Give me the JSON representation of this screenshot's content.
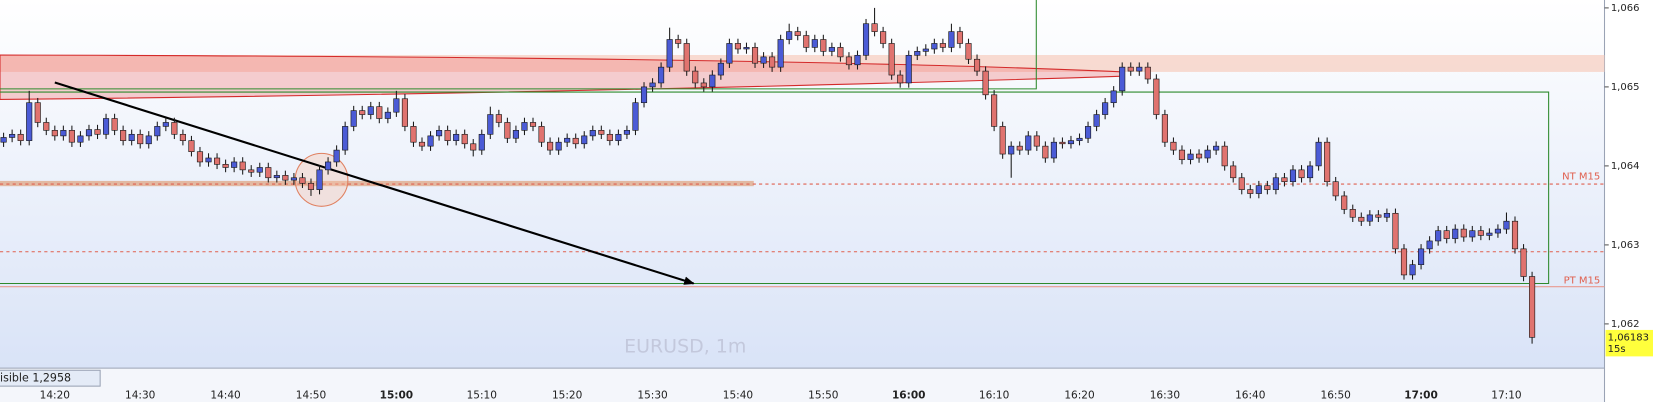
{
  "chart_data": {
    "type": "candlestick",
    "watermark": "EURUSD, 1m",
    "status_text": "isible 1,2958",
    "level_labels": [
      "NT M15",
      "PT M15"
    ],
    "last_price": {
      "value": 1.06183,
      "label": "1,06183"
    },
    "countdown": "15s",
    "up_color": "#4b5bd6",
    "down_color": "#e0736f",
    "ylim": [
      1.06144,
      1.0661
    ],
    "yticks": [
      {
        "value": 1.062,
        "label": "1,062"
      },
      {
        "value": 1.063,
        "label": "1,063"
      },
      {
        "value": 1.064,
        "label": "1,064"
      },
      {
        "value": 1.065,
        "label": "1,065"
      },
      {
        "value": 1.066,
        "label": "1,066"
      }
    ],
    "categories": [
      null,
      null,
      null,
      null,
      null,
      null,
      "14:20",
      null,
      null,
      null,
      null,
      null,
      null,
      null,
      null,
      null,
      "14:30",
      null,
      null,
      null,
      null,
      null,
      null,
      null,
      null,
      null,
      "14:40",
      null,
      null,
      null,
      null,
      null,
      null,
      null,
      null,
      null,
      "14:50",
      null,
      null,
      null,
      null,
      null,
      null,
      null,
      null,
      null,
      "15:00",
      null,
      null,
      null,
      null,
      null,
      null,
      null,
      null,
      null,
      "15:10",
      null,
      null,
      null,
      null,
      null,
      null,
      null,
      null,
      null,
      "15:20",
      null,
      null,
      null,
      null,
      null,
      null,
      null,
      null,
      null,
      "15:30",
      null,
      null,
      null,
      null,
      null,
      null,
      null,
      null,
      null,
      "15:40",
      null,
      null,
      null,
      null,
      null,
      null,
      null,
      null,
      null,
      "15:50",
      null,
      null,
      null,
      null,
      null,
      null,
      null,
      null,
      null,
      "16:00",
      null,
      null,
      null,
      null,
      null,
      null,
      null,
      null,
      null,
      "16:10",
      null,
      null,
      null,
      null,
      null,
      null,
      null,
      null,
      null,
      "16:20",
      null,
      null,
      null,
      null,
      null,
      null,
      null,
      null,
      null,
      "16:30",
      null,
      null,
      null,
      null,
      null,
      null,
      null,
      null,
      null,
      "16:40",
      null,
      null,
      null,
      null,
      null,
      null,
      null,
      null,
      null,
      "16:50",
      null,
      null,
      null,
      null,
      null,
      null,
      null,
      null,
      null,
      "17:00",
      null,
      null,
      null,
      null,
      null,
      null,
      null,
      null,
      null,
      "17:10",
      null,
      null,
      null
    ],
    "open": [
      1.0643,
      1.06436,
      1.0644,
      1.06432,
      1.0648,
      1.06455,
      1.06445,
      1.06438,
      1.06445,
      1.0643,
      1.06438,
      1.06446,
      1.0644,
      1.0646,
      1.06445,
      1.06432,
      1.0644,
      1.06428,
      1.06438,
      1.0645,
      1.06455,
      1.0644,
      1.06432,
      1.06418,
      1.06405,
      1.0641,
      1.06402,
      1.06398,
      1.06405,
      1.06395,
      1.06392,
      1.06398,
      1.06385,
      1.06388,
      1.06382,
      1.06385,
      1.06378,
      1.0637,
      1.06395,
      1.06405,
      1.0642,
      1.0645,
      1.0647,
      1.06465,
      1.06475,
      1.0646,
      1.06468,
      1.06485,
      1.0645,
      1.0643,
      1.06425,
      1.06438,
      1.06445,
      1.06432,
      1.0644,
      1.06428,
      1.0642,
      1.0644,
      1.06465,
      1.06455,
      1.06435,
      1.06445,
      1.06455,
      1.0645,
      1.0643,
      1.0642,
      1.0643,
      1.06435,
      1.06428,
      1.06438,
      1.06445,
      1.0644,
      1.06432,
      1.0644,
      1.06445,
      1.0648,
      1.065,
      1.06505,
      1.06525,
      1.0656,
      1.06555,
      1.0652,
      1.06505,
      1.065,
      1.06515,
      1.0653,
      1.06555,
      1.06548,
      1.0655,
      1.0653,
      1.06538,
      1.06525,
      1.0656,
      1.0657,
      1.06565,
      1.0655,
      1.0656,
      1.06545,
      1.0655,
      1.06538,
      1.06528,
      1.0654,
      1.0658,
      1.0657,
      1.06555,
      1.06515,
      1.06505,
      1.0654,
      1.06545,
      1.06548,
      1.06555,
      1.0655,
      1.0657,
      1.06555,
      1.06535,
      1.0652,
      1.0649,
      1.0645,
      1.06415,
      1.06425,
      1.0642,
      1.06438,
      1.06425,
      1.0641,
      1.0643,
      1.06428,
      1.06432,
      1.06435,
      1.0645,
      1.06465,
      1.0648,
      1.06495,
      1.06525,
      1.0652,
      1.06525,
      1.0651,
      1.06465,
      1.0643,
      1.0642,
      1.06408,
      1.06415,
      1.0641,
      1.0642,
      1.06425,
      1.064,
      1.06385,
      1.0637,
      1.06365,
      1.06375,
      1.0637,
      1.06385,
      1.0638,
      1.06395,
      1.06385,
      1.064,
      1.0643,
      1.0638,
      1.06362,
      1.06345,
      1.06335,
      1.0633,
      1.06338,
      1.06335,
      1.0634,
      1.06295,
      1.06262,
      1.06275,
      1.06295,
      1.06305,
      1.06318,
      1.06308,
      1.0632,
      1.0631,
      1.06318,
      1.06312,
      1.06315,
      1.0632,
      1.0633,
      1.06295,
      1.0626
    ],
    "high": [
      1.06442,
      1.06446,
      1.06446,
      1.06495,
      1.06486,
      1.06461,
      1.06451,
      1.06451,
      1.06451,
      1.06444,
      1.06452,
      1.06452,
      1.06466,
      1.06466,
      1.06451,
      1.06446,
      1.06446,
      1.06444,
      1.06456,
      1.06461,
      1.06461,
      1.06446,
      1.06438,
      1.06424,
      1.06416,
      1.06416,
      1.06408,
      1.06411,
      1.06411,
      1.06401,
      1.06404,
      1.06404,
      1.06394,
      1.06394,
      1.06391,
      1.06391,
      1.06384,
      1.06401,
      1.06411,
      1.06426,
      1.06456,
      1.06476,
      1.06476,
      1.06481,
      1.06481,
      1.06474,
      1.06495,
      1.06491,
      1.06456,
      1.06436,
      1.06444,
      1.06451,
      1.06451,
      1.06446,
      1.06446,
      1.06434,
      1.06446,
      1.06475,
      1.06471,
      1.06461,
      1.06451,
      1.06461,
      1.06461,
      1.06456,
      1.06436,
      1.06436,
      1.06441,
      1.06441,
      1.06444,
      1.06451,
      1.06451,
      1.06446,
      1.06446,
      1.06451,
      1.06486,
      1.06506,
      1.06511,
      1.06531,
      1.06575,
      1.06566,
      1.06561,
      1.06526,
      1.06511,
      1.06521,
      1.06536,
      1.06561,
      1.06561,
      1.06556,
      1.06556,
      1.06544,
      1.06544,
      1.06566,
      1.0658,
      1.06576,
      1.06571,
      1.06566,
      1.06566,
      1.06556,
      1.06556,
      1.06544,
      1.06546,
      1.06586,
      1.066,
      1.06576,
      1.06561,
      1.06521,
      1.06546,
      1.06551,
      1.06554,
      1.06561,
      1.06561,
      1.0658,
      1.06576,
      1.06561,
      1.06541,
      1.06526,
      1.06496,
      1.06456,
      1.06431,
      1.06431,
      1.06444,
      1.06444,
      1.06431,
      1.06436,
      1.06436,
      1.06438,
      1.06441,
      1.06456,
      1.06471,
      1.06486,
      1.06501,
      1.06531,
      1.06531,
      1.06531,
      1.06531,
      1.06516,
      1.06471,
      1.06436,
      1.06426,
      1.06421,
      1.06421,
      1.06426,
      1.06431,
      1.06431,
      1.06406,
      1.06391,
      1.06376,
      1.06381,
      1.06381,
      1.06391,
      1.06391,
      1.06401,
      1.06401,
      1.06406,
      1.06436,
      1.06436,
      1.06386,
      1.06368,
      1.06351,
      1.06341,
      1.06344,
      1.06344,
      1.06346,
      1.06346,
      1.06301,
      1.06281,
      1.06301,
      1.06311,
      1.06324,
      1.06324,
      1.06326,
      1.06326,
      1.06324,
      1.06324,
      1.06321,
      1.06326,
      1.06341,
      1.06336,
      1.06301,
      1.06266
    ],
    "low": [
      1.06424,
      1.0643,
      1.06426,
      1.06426,
      1.06449,
      1.06439,
      1.06432,
      1.06432,
      1.06424,
      1.06424,
      1.06432,
      1.06434,
      1.06434,
      1.06439,
      1.06426,
      1.06426,
      1.06422,
      1.06422,
      1.06432,
      1.06444,
      1.06434,
      1.06426,
      1.06412,
      1.06399,
      1.06399,
      1.06396,
      1.06392,
      1.06392,
      1.06389,
      1.06386,
      1.06386,
      1.06379,
      1.06379,
      1.06376,
      1.06376,
      1.06372,
      1.06362,
      1.06364,
      1.06389,
      1.06399,
      1.06414,
      1.06444,
      1.06459,
      1.06459,
      1.06454,
      1.06454,
      1.06462,
      1.06444,
      1.06424,
      1.06419,
      1.06419,
      1.06432,
      1.06426,
      1.06426,
      1.06422,
      1.06412,
      1.06414,
      1.06434,
      1.06449,
      1.06429,
      1.06429,
      1.06439,
      1.06444,
      1.06424,
      1.06414,
      1.06414,
      1.06424,
      1.06422,
      1.06422,
      1.06432,
      1.06434,
      1.06426,
      1.06426,
      1.06434,
      1.06439,
      1.06474,
      1.06494,
      1.06499,
      1.06519,
      1.06549,
      1.06514,
      1.06499,
      1.06494,
      1.06494,
      1.06509,
      1.06524,
      1.06542,
      1.06542,
      1.06524,
      1.06524,
      1.06519,
      1.06519,
      1.06554,
      1.06559,
      1.06544,
      1.06544,
      1.06539,
      1.06539,
      1.06532,
      1.06522,
      1.06522,
      1.06534,
      1.06564,
      1.06549,
      1.06509,
      1.06499,
      1.06499,
      1.06534,
      1.06539,
      1.06542,
      1.06544,
      1.06544,
      1.06549,
      1.06529,
      1.06514,
      1.06484,
      1.06444,
      1.06409,
      1.06385,
      1.06414,
      1.06414,
      1.06419,
      1.06404,
      1.06404,
      1.06422,
      1.06422,
      1.06426,
      1.06429,
      1.06444,
      1.06459,
      1.06474,
      1.06489,
      1.06514,
      1.06514,
      1.06504,
      1.06459,
      1.06424,
      1.06414,
      1.06402,
      1.06402,
      1.06404,
      1.06404,
      1.06414,
      1.06394,
      1.06379,
      1.06364,
      1.06359,
      1.06359,
      1.06364,
      1.06364,
      1.06374,
      1.06374,
      1.06379,
      1.06379,
      1.06394,
      1.06374,
      1.06356,
      1.06339,
      1.06329,
      1.06324,
      1.06324,
      1.06329,
      1.06329,
      1.06289,
      1.06256,
      1.06256,
      1.06269,
      1.06289,
      1.06299,
      1.06302,
      1.06302,
      1.06304,
      1.06304,
      1.06306,
      1.06306,
      1.06309,
      1.06314,
      1.06289,
      1.06254,
      1.06175
    ],
    "close": [
      1.06436,
      1.0644,
      1.06432,
      1.0648,
      1.06455,
      1.06445,
      1.06438,
      1.06445,
      1.0643,
      1.06438,
      1.06446,
      1.0644,
      1.0646,
      1.06445,
      1.06432,
      1.0644,
      1.06428,
      1.06438,
      1.0645,
      1.06455,
      1.0644,
      1.06432,
      1.06418,
      1.06405,
      1.0641,
      1.06402,
      1.06398,
      1.06405,
      1.06395,
      1.06392,
      1.06398,
      1.06385,
      1.06388,
      1.06382,
      1.06385,
      1.06378,
      1.0637,
      1.06395,
      1.06405,
      1.0642,
      1.0645,
      1.0647,
      1.06465,
      1.06475,
      1.0646,
      1.06468,
      1.06485,
      1.0645,
      1.0643,
      1.06425,
      1.06438,
      1.06445,
      1.06432,
      1.0644,
      1.06428,
      1.0642,
      1.0644,
      1.06465,
      1.06455,
      1.06435,
      1.06445,
      1.06455,
      1.0645,
      1.0643,
      1.0642,
      1.0643,
      1.06435,
      1.06428,
      1.06438,
      1.06445,
      1.0644,
      1.06432,
      1.0644,
      1.06445,
      1.0648,
      1.065,
      1.06505,
      1.06525,
      1.0656,
      1.06555,
      1.0652,
      1.06505,
      1.065,
      1.06515,
      1.0653,
      1.06555,
      1.06548,
      1.0655,
      1.0653,
      1.06538,
      1.06525,
      1.0656,
      1.0657,
      1.06565,
      1.0655,
      1.0656,
      1.06545,
      1.0655,
      1.06538,
      1.06528,
      1.0654,
      1.0658,
      1.0657,
      1.06555,
      1.06515,
      1.06505,
      1.0654,
      1.06545,
      1.06548,
      1.06555,
      1.0655,
      1.0657,
      1.06555,
      1.06535,
      1.0652,
      1.0649,
      1.0645,
      1.06415,
      1.06425,
      1.0642,
      1.06438,
      1.06425,
      1.0641,
      1.0643,
      1.06428,
      1.06432,
      1.06435,
      1.0645,
      1.06465,
      1.0648,
      1.06495,
      1.06525,
      1.0652,
      1.06525,
      1.0651,
      1.06465,
      1.0643,
      1.0642,
      1.06408,
      1.06415,
      1.0641,
      1.0642,
      1.06425,
      1.064,
      1.06385,
      1.0637,
      1.06365,
      1.06375,
      1.0637,
      1.06385,
      1.0638,
      1.06395,
      1.06385,
      1.064,
      1.0643,
      1.0638,
      1.06362,
      1.06345,
      1.06335,
      1.0633,
      1.06338,
      1.06335,
      1.0634,
      1.06295,
      1.06262,
      1.06275,
      1.06295,
      1.06305,
      1.06318,
      1.06308,
      1.0632,
      1.0631,
      1.06318,
      1.06312,
      1.06315,
      1.0632,
      1.0633,
      1.06295,
      1.0626,
      1.06183
    ]
  }
}
